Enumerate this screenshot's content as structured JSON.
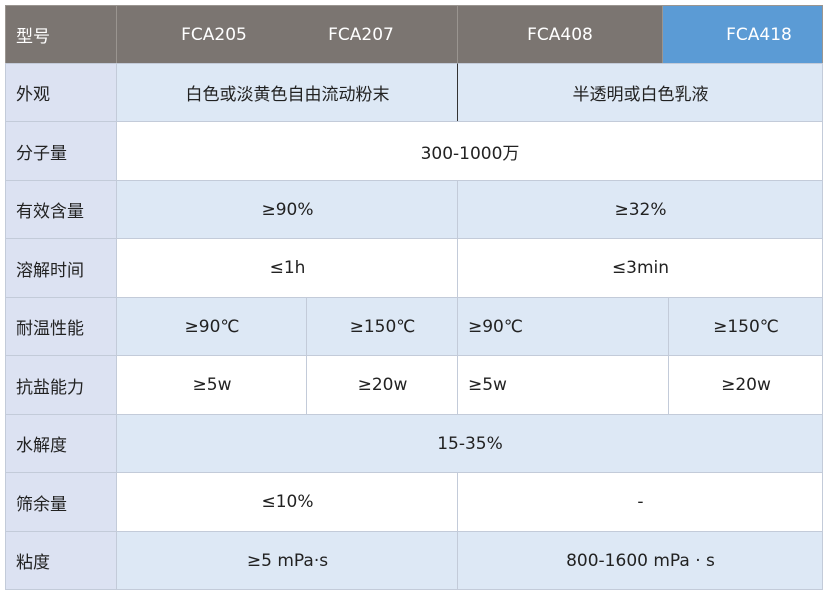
{
  "table": {
    "header": [
      "型号",
      "FCA205",
      "FCA207",
      "FCA408",
      "FCA418"
    ],
    "rows": [
      {
        "label": "外观",
        "cells": [
          "白色或淡黄色自由流动粉末",
          "半透明或白色乳液"
        ]
      },
      {
        "label": "分子量",
        "cells": [
          "300-1000万"
        ]
      },
      {
        "label": "有效含量",
        "cells": [
          "≥90%",
          "≥32%"
        ]
      },
      {
        "label": "溶解时间",
        "cells": [
          "≤1h",
          "≤3min"
        ]
      },
      {
        "label": "耐温性能",
        "cells": [
          "≥90℃",
          "≥150℃",
          "≥90℃",
          "≥150℃"
        ]
      },
      {
        "label": "抗盐能力",
        "cells": [
          "≥5w",
          "≥20w",
          "≥5w",
          "≥20w"
        ]
      },
      {
        "label": "水解度",
        "cells": [
          "15-35%"
        ]
      },
      {
        "label": "筛余量",
        "cells": [
          "≤10%",
          "-"
        ]
      },
      {
        "label": "粘度",
        "cells": [
          "≥5 mPa·s",
          "800-1600 mPa · s"
        ]
      }
    ]
  }
}
